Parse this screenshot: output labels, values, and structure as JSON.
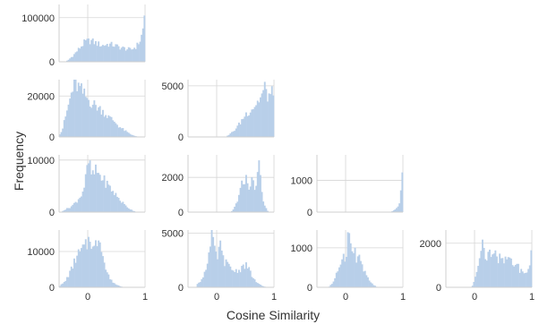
{
  "figure": {
    "xlabel": "Cosine Similarity",
    "ylabel": "Frequency"
  },
  "chart_data": {
    "type": "histogram-grid",
    "layout": "lower-triangular 4x4 grid",
    "xlim": [
      -0.5,
      1.0
    ],
    "x_ticks": [
      0,
      1
    ],
    "x_tick_labels_shown_on_bottom_row": true,
    "grid": true,
    "bar_color": "#b8cfe9",
    "panels": [
      {
        "row": 0,
        "col": 0,
        "ylim": [
          0,
          130000
        ],
        "yticks": [
          0,
          100000
        ],
        "profile": [
          [
            -0.4,
            0
          ],
          [
            -0.35,
            3000
          ],
          [
            -0.25,
            15000
          ],
          [
            -0.15,
            30000
          ],
          [
            -0.05,
            45000
          ],
          [
            0.05,
            48000
          ],
          [
            0.15,
            42000
          ],
          [
            0.25,
            37000
          ],
          [
            0.35,
            40000
          ],
          [
            0.45,
            38000
          ],
          [
            0.55,
            33000
          ],
          [
            0.65,
            30000
          ],
          [
            0.75,
            27000
          ],
          [
            0.85,
            35000
          ],
          [
            0.92,
            50000
          ],
          [
            0.96,
            70000
          ],
          [
            0.98,
            95000
          ],
          [
            1.0,
            120000
          ]
        ]
      },
      {
        "row": 1,
        "col": 0,
        "ylim": [
          0,
          28000
        ],
        "yticks": [
          0,
          20000
        ],
        "profile": [
          [
            -0.5,
            1000
          ],
          [
            -0.45,
            3000
          ],
          [
            -0.35,
            14000
          ],
          [
            -0.28,
            22000
          ],
          [
            -0.22,
            26000
          ],
          [
            -0.15,
            24000
          ],
          [
            -0.05,
            20000
          ],
          [
            0.05,
            17000
          ],
          [
            0.15,
            15000
          ],
          [
            0.25,
            13000
          ],
          [
            0.35,
            10000
          ],
          [
            0.45,
            8000
          ],
          [
            0.55,
            5000
          ],
          [
            0.65,
            3000
          ],
          [
            0.75,
            1200
          ],
          [
            0.85,
            300
          ],
          [
            0.9,
            0
          ]
        ]
      },
      {
        "row": 1,
        "col": 1,
        "ylim": [
          0,
          5600
        ],
        "yticks": [
          0,
          5000
        ],
        "profile": [
          [
            0.15,
            0
          ],
          [
            0.2,
            150
          ],
          [
            0.3,
            600
          ],
          [
            0.4,
            1300
          ],
          [
            0.5,
            2200
          ],
          [
            0.6,
            2700
          ],
          [
            0.7,
            3300
          ],
          [
            0.78,
            4000
          ],
          [
            0.84,
            4800
          ],
          [
            0.88,
            4000
          ],
          [
            0.92,
            4100
          ],
          [
            0.96,
            4200
          ],
          [
            1.0,
            4300
          ]
        ]
      },
      {
        "row": 2,
        "col": 0,
        "ylim": [
          0,
          11000
        ],
        "yticks": [
          0,
          10000
        ],
        "profile": [
          [
            -0.45,
            200
          ],
          [
            -0.3,
            1000
          ],
          [
            -0.2,
            2000
          ],
          [
            -0.1,
            3500
          ],
          [
            -0.05,
            5500
          ],
          [
            0.0,
            9000
          ],
          [
            0.02,
            10000
          ],
          [
            0.05,
            7500
          ],
          [
            0.1,
            7200
          ],
          [
            0.15,
            8000
          ],
          [
            0.2,
            7200
          ],
          [
            0.25,
            6500
          ],
          [
            0.35,
            5200
          ],
          [
            0.45,
            3800
          ],
          [
            0.55,
            2500
          ],
          [
            0.65,
            1300
          ],
          [
            0.75,
            500
          ],
          [
            0.85,
            0
          ]
        ]
      },
      {
        "row": 2,
        "col": 1,
        "ylim": [
          0,
          3300
        ],
        "yticks": [
          0,
          2000
        ],
        "profile": [
          [
            0.25,
            0
          ],
          [
            0.3,
            200
          ],
          [
            0.38,
            800
          ],
          [
            0.44,
            1600
          ],
          [
            0.5,
            2000
          ],
          [
            0.56,
            1500
          ],
          [
            0.62,
            1800
          ],
          [
            0.68,
            1400
          ],
          [
            0.72,
            2200
          ],
          [
            0.75,
            3000
          ],
          [
            0.78,
            1200
          ],
          [
            0.82,
            500
          ],
          [
            0.86,
            250
          ],
          [
            0.9,
            0
          ]
        ]
      },
      {
        "row": 2,
        "col": 2,
        "ylim": [
          0,
          1800
        ],
        "yticks": [
          0,
          1000
        ],
        "profile": [
          [
            0.78,
            0
          ],
          [
            0.84,
            50
          ],
          [
            0.9,
            150
          ],
          [
            0.94,
            300
          ],
          [
            0.96,
            600
          ],
          [
            0.98,
            1000
          ],
          [
            1.0,
            1500
          ]
        ]
      },
      {
        "row": 3,
        "col": 0,
        "ylim": [
          0,
          16000
        ],
        "yticks": [
          0,
          10000
        ],
        "profile": [
          [
            -0.5,
            300
          ],
          [
            -0.4,
            1500
          ],
          [
            -0.3,
            4500
          ],
          [
            -0.2,
            8500
          ],
          [
            -0.1,
            10500
          ],
          [
            0.0,
            12000
          ],
          [
            0.03,
            15000
          ],
          [
            0.1,
            10000
          ],
          [
            0.15,
            12500
          ],
          [
            0.2,
            14500
          ],
          [
            0.25,
            11000
          ],
          [
            0.3,
            5500
          ],
          [
            0.4,
            2000
          ],
          [
            0.5,
            700
          ],
          [
            0.6,
            150
          ],
          [
            0.7,
            0
          ]
        ]
      },
      {
        "row": 3,
        "col": 1,
        "ylim": [
          0,
          5300
        ],
        "yticks": [
          0,
          5000
        ],
        "profile": [
          [
            -0.35,
            200
          ],
          [
            -0.25,
            800
          ],
          [
            -0.18,
            2000
          ],
          [
            -0.12,
            3500
          ],
          [
            -0.08,
            4900
          ],
          [
            -0.04,
            3500
          ],
          [
            0.0,
            2500
          ],
          [
            0.05,
            4000
          ],
          [
            0.12,
            2500
          ],
          [
            0.2,
            2000
          ],
          [
            0.3,
            1500
          ],
          [
            0.4,
            1600
          ],
          [
            0.48,
            2100
          ],
          [
            0.55,
            1800
          ],
          [
            0.62,
            1000
          ],
          [
            0.7,
            400
          ],
          [
            0.8,
            100
          ],
          [
            0.9,
            0
          ]
        ]
      },
      {
        "row": 3,
        "col": 2,
        "ylim": [
          0,
          1450
        ],
        "yticks": [
          0,
          1000
        ],
        "profile": [
          [
            -0.3,
            0
          ],
          [
            -0.2,
            150
          ],
          [
            -0.12,
            500
          ],
          [
            -0.06,
            800
          ],
          [
            0.0,
            750
          ],
          [
            0.04,
            1350
          ],
          [
            0.08,
            1200
          ],
          [
            0.12,
            800
          ],
          [
            0.16,
            1000
          ],
          [
            0.2,
            600
          ],
          [
            0.24,
            850
          ],
          [
            0.3,
            450
          ],
          [
            0.38,
            250
          ],
          [
            0.45,
            100
          ],
          [
            0.55,
            0
          ]
        ]
      },
      {
        "row": 3,
        "col": 3,
        "ylim": [
          0,
          2600
        ],
        "yticks": [
          0,
          2000
        ],
        "profile": [
          [
            -0.05,
            0
          ],
          [
            0.0,
            300
          ],
          [
            0.05,
            900
          ],
          [
            0.1,
            1400
          ],
          [
            0.15,
            2000
          ],
          [
            0.2,
            1300
          ],
          [
            0.25,
            1600
          ],
          [
            0.3,
            1200
          ],
          [
            0.35,
            1800
          ],
          [
            0.4,
            1000
          ],
          [
            0.45,
            1400
          ],
          [
            0.5,
            1200
          ],
          [
            0.55,
            1500
          ],
          [
            0.6,
            1100
          ],
          [
            0.65,
            1300
          ],
          [
            0.7,
            900
          ],
          [
            0.75,
            1000
          ],
          [
            0.8,
            700
          ],
          [
            0.85,
            800
          ],
          [
            0.9,
            500
          ],
          [
            0.95,
            900
          ],
          [
            0.98,
            1500
          ],
          [
            1.0,
            2400
          ]
        ]
      }
    ]
  }
}
